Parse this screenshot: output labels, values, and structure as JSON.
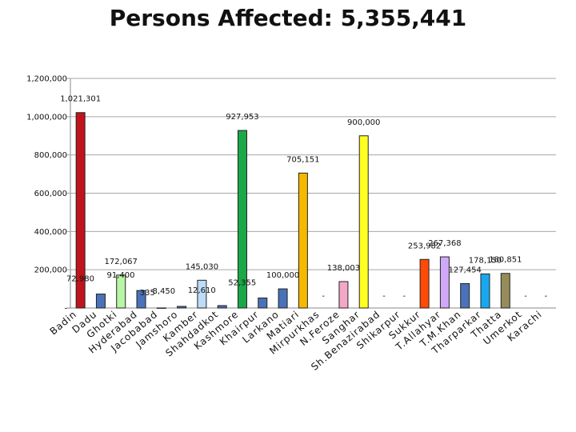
{
  "chart_data": {
    "type": "bar",
    "title": "Persons Affected: 5,355,441",
    "xlabel": "",
    "ylabel": "",
    "ylim": [
      0,
      1200000
    ],
    "ytick_step": 200000,
    "ytick_labels": [
      "-",
      "200,000",
      "400,000",
      "600,000",
      "800,000",
      "1,000,000",
      "1,200,000"
    ],
    "grid": true,
    "legend": "none",
    "categories": [
      "Badin",
      "Dadu",
      "Ghotki",
      "Hyderabad",
      "Jacobabad",
      "Jamshoro",
      "Kamber",
      "Shahdadkot",
      "Kashmore",
      "Khairpur",
      "Larkano",
      "Matiari",
      "Mirpurkhas",
      "N.Feroze",
      "Sanghar",
      "Sh.Benazirabad",
      "Shikarpur",
      "Sukkur",
      "T.Allahyar",
      "T.M.Khan",
      "Tharparkar",
      "Thatta",
      "Umerkot",
      "Karachi"
    ],
    "values": [
      1021301,
      72980,
      172067,
      91400,
      335,
      8450,
      145030,
      12610,
      927953,
      52355,
      100000,
      705151,
      0,
      138003,
      900000,
      0,
      0,
      253982,
      267368,
      127454,
      178150,
      180851,
      0,
      0
    ],
    "data_labels": [
      "1,021,301",
      "72,980",
      "172,067",
      "91,400",
      "335",
      "8,450",
      "145,030",
      "12,610",
      "927,953",
      "52,355",
      "100,000",
      "705,151",
      "-",
      "138,003",
      "900,000",
      "-",
      "-",
      "253,982",
      "267,368",
      "127,454",
      "178,150",
      "180,851",
      "-",
      "-"
    ],
    "colors": [
      "#c0141c",
      "#4a72b8",
      "#b8f5a4",
      "#4a72b8",
      "#4a72b8",
      "#4a72b8",
      "#bcdcf8",
      "#4a72b8",
      "#1aa848",
      "#4a72b8",
      "#4a72b8",
      "#f5b800",
      "#4a72b8",
      "#f4a8c8",
      "#ffff22",
      "#4a72b8",
      "#4a72b8",
      "#ff4a08",
      "#d0a8f8",
      "#4a72b8",
      "#18a8f0",
      "#968c5a",
      "#4a72b8",
      "#4a72b8"
    ]
  }
}
